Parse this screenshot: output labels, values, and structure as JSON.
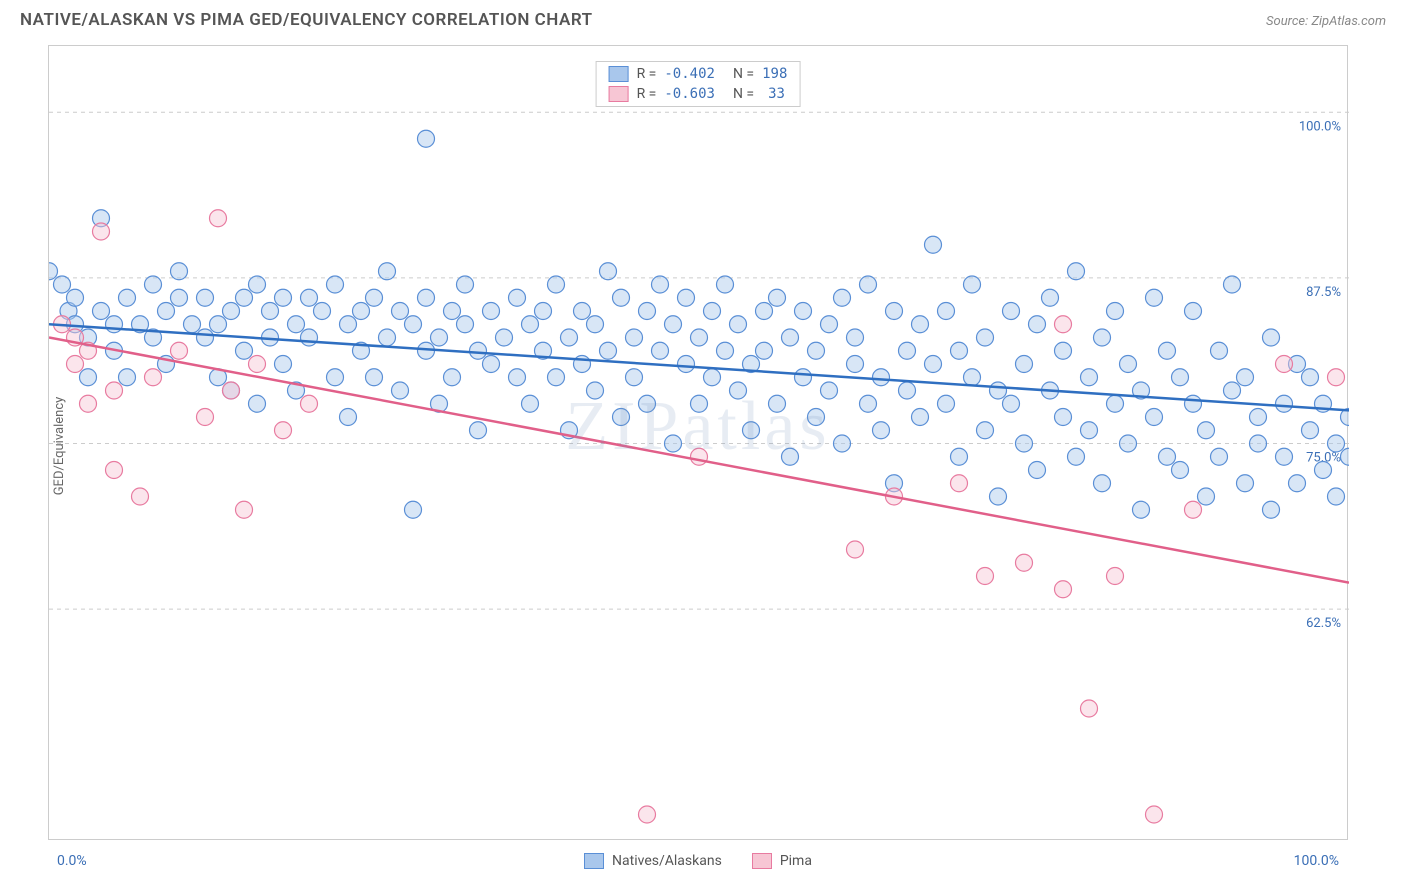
{
  "header": {
    "title": "NATIVE/ALASKAN VS PIMA GED/EQUIVALENCY CORRELATION CHART",
    "source_prefix": "Source: ",
    "source_name": "ZipAtlas.com"
  },
  "ylabel": "GED/Equivalency",
  "watermark": "ZIPatlas",
  "axes": {
    "xlim": [
      0,
      100
    ],
    "ylim": [
      45,
      105
    ],
    "x_tick_left": "0.0%",
    "x_tick_right": "100.0%",
    "y_ticks": [
      {
        "v": 62.5,
        "label": "62.5%"
      },
      {
        "v": 75.0,
        "label": "75.0%"
      },
      {
        "v": 87.5,
        "label": "87.5%"
      },
      {
        "v": 100.0,
        "label": "100.0%"
      }
    ],
    "grid_color": "#cccccc"
  },
  "legend": {
    "series_a": {
      "name": "Natives/Alaskans",
      "R": "-0.402",
      "N": "198"
    },
    "series_b": {
      "name": "Pima",
      "R": "-0.603",
      "N": "33"
    },
    "R_label": "R = ",
    "N_label": "N = "
  },
  "colors": {
    "series_a_fill": "#a9c7ec",
    "series_a_stroke": "#5a8fd6",
    "series_a_line": "#2f6fc1",
    "series_b_fill": "#f7c6d4",
    "series_b_stroke": "#e87ba0",
    "series_b_line": "#e15f89",
    "axis_text": "#3b6fb6",
    "background": "#ffffff"
  },
  "trend_lines": {
    "a": {
      "x1": 0,
      "y1": 84.0,
      "x2": 100,
      "y2": 77.5
    },
    "b": {
      "x1": 0,
      "y1": 83.0,
      "x2": 100,
      "y2": 64.5
    }
  },
  "marker_radius": 8.5,
  "series_a_points": [
    [
      0,
      88
    ],
    [
      1,
      87
    ],
    [
      1.5,
      85
    ],
    [
      2,
      84
    ],
    [
      2,
      86
    ],
    [
      3,
      83
    ],
    [
      3,
      80
    ],
    [
      4,
      85
    ],
    [
      4,
      92
    ],
    [
      5,
      84
    ],
    [
      5,
      82
    ],
    [
      6,
      86
    ],
    [
      6,
      80
    ],
    [
      7,
      84
    ],
    [
      8,
      87
    ],
    [
      8,
      83
    ],
    [
      9,
      85
    ],
    [
      9,
      81
    ],
    [
      10,
      86
    ],
    [
      10,
      88
    ],
    [
      11,
      84
    ],
    [
      12,
      83
    ],
    [
      12,
      86
    ],
    [
      13,
      80
    ],
    [
      13,
      84
    ],
    [
      14,
      85
    ],
    [
      14,
      79
    ],
    [
      15,
      86
    ],
    [
      15,
      82
    ],
    [
      16,
      87
    ],
    [
      16,
      78
    ],
    [
      17,
      85
    ],
    [
      17,
      83
    ],
    [
      18,
      86
    ],
    [
      18,
      81
    ],
    [
      19,
      84
    ],
    [
      19,
      79
    ],
    [
      20,
      86
    ],
    [
      20,
      83
    ],
    [
      21,
      85
    ],
    [
      22,
      80
    ],
    [
      22,
      87
    ],
    [
      23,
      84
    ],
    [
      23,
      77
    ],
    [
      24,
      82
    ],
    [
      24,
      85
    ],
    [
      25,
      86
    ],
    [
      25,
      80
    ],
    [
      26,
      83
    ],
    [
      26,
      88
    ],
    [
      27,
      85
    ],
    [
      27,
      79
    ],
    [
      28,
      84
    ],
    [
      28,
      70
    ],
    [
      29,
      82
    ],
    [
      29,
      86
    ],
    [
      30,
      83
    ],
    [
      30,
      78
    ],
    [
      31,
      85
    ],
    [
      31,
      80
    ],
    [
      32,
      84
    ],
    [
      32,
      87
    ],
    [
      33,
      82
    ],
    [
      33,
      76
    ],
    [
      34,
      85
    ],
    [
      34,
      81
    ],
    [
      35,
      83
    ],
    [
      36,
      80
    ],
    [
      36,
      86
    ],
    [
      37,
      84
    ],
    [
      37,
      78
    ],
    [
      38,
      82
    ],
    [
      38,
      85
    ],
    [
      39,
      80
    ],
    [
      39,
      87
    ],
    [
      40,
      83
    ],
    [
      40,
      76
    ],
    [
      41,
      85
    ],
    [
      41,
      81
    ],
    [
      42,
      84
    ],
    [
      42,
      79
    ],
    [
      43,
      82
    ],
    [
      43,
      88
    ],
    [
      44,
      86
    ],
    [
      44,
      77
    ],
    [
      45,
      83
    ],
    [
      45,
      80
    ],
    [
      46,
      85
    ],
    [
      46,
      78
    ],
    [
      47,
      82
    ],
    [
      47,
      87
    ],
    [
      48,
      84
    ],
    [
      48,
      75
    ],
    [
      49,
      81
    ],
    [
      49,
      86
    ],
    [
      50,
      83
    ],
    [
      50,
      78
    ],
    [
      51,
      85
    ],
    [
      51,
      80
    ],
    [
      52,
      82
    ],
    [
      52,
      87
    ],
    [
      53,
      79
    ],
    [
      53,
      84
    ],
    [
      54,
      81
    ],
    [
      54,
      76
    ],
    [
      55,
      85
    ],
    [
      55,
      82
    ],
    [
      56,
      78
    ],
    [
      56,
      86
    ],
    [
      57,
      83
    ],
    [
      57,
      74
    ],
    [
      58,
      80
    ],
    [
      58,
      85
    ],
    [
      59,
      82
    ],
    [
      59,
      77
    ],
    [
      60,
      84
    ],
    [
      60,
      79
    ],
    [
      61,
      86
    ],
    [
      61,
      75
    ],
    [
      62,
      81
    ],
    [
      62,
      83
    ],
    [
      63,
      78
    ],
    [
      63,
      87
    ],
    [
      64,
      80
    ],
    [
      64,
      76
    ],
    [
      65,
      85
    ],
    [
      65,
      72
    ],
    [
      66,
      82
    ],
    [
      66,
      79
    ],
    [
      67,
      84
    ],
    [
      67,
      77
    ],
    [
      68,
      90
    ],
    [
      68,
      81
    ],
    [
      69,
      78
    ],
    [
      69,
      85
    ],
    [
      70,
      74
    ],
    [
      70,
      82
    ],
    [
      71,
      80
    ],
    [
      71,
      87
    ],
    [
      72,
      76
    ],
    [
      72,
      83
    ],
    [
      73,
      79
    ],
    [
      73,
      71
    ],
    [
      74,
      85
    ],
    [
      74,
      78
    ],
    [
      75,
      81
    ],
    [
      75,
      75
    ],
    [
      76,
      84
    ],
    [
      76,
      73
    ],
    [
      77,
      79
    ],
    [
      77,
      86
    ],
    [
      78,
      77
    ],
    [
      78,
      82
    ],
    [
      79,
      74
    ],
    [
      79,
      88
    ],
    [
      80,
      80
    ],
    [
      80,
      76
    ],
    [
      81,
      83
    ],
    [
      81,
      72
    ],
    [
      82,
      78
    ],
    [
      82,
      85
    ],
    [
      83,
      75
    ],
    [
      83,
      81
    ],
    [
      84,
      79
    ],
    [
      84,
      70
    ],
    [
      85,
      86
    ],
    [
      85,
      77
    ],
    [
      86,
      74
    ],
    [
      86,
      82
    ],
    [
      87,
      80
    ],
    [
      87,
      73
    ],
    [
      88,
      78
    ],
    [
      88,
      85
    ],
    [
      89,
      76
    ],
    [
      89,
      71
    ],
    [
      90,
      82
    ],
    [
      90,
      74
    ],
    [
      91,
      79
    ],
    [
      91,
      87
    ],
    [
      92,
      72
    ],
    [
      92,
      80
    ],
    [
      93,
      77
    ],
    [
      93,
      75
    ],
    [
      94,
      83
    ],
    [
      94,
      70
    ],
    [
      95,
      78
    ],
    [
      95,
      74
    ],
    [
      96,
      81
    ],
    [
      96,
      72
    ],
    [
      97,
      76
    ],
    [
      97,
      80
    ],
    [
      98,
      73
    ],
    [
      98,
      78
    ],
    [
      99,
      75
    ],
    [
      99,
      71
    ],
    [
      100,
      77
    ],
    [
      100,
      74
    ],
    [
      29,
      98
    ]
  ],
  "series_b_points": [
    [
      1,
      84
    ],
    [
      2,
      81
    ],
    [
      2,
      83
    ],
    [
      3,
      82
    ],
    [
      3,
      78
    ],
    [
      4,
      91
    ],
    [
      5,
      79
    ],
    [
      5,
      73
    ],
    [
      7,
      71
    ],
    [
      8,
      80
    ],
    [
      10,
      82
    ],
    [
      12,
      77
    ],
    [
      13,
      92
    ],
    [
      14,
      79
    ],
    [
      15,
      70
    ],
    [
      16,
      81
    ],
    [
      18,
      76
    ],
    [
      20,
      78
    ],
    [
      46,
      47
    ],
    [
      50,
      74
    ],
    [
      62,
      67
    ],
    [
      65,
      71
    ],
    [
      70,
      72
    ],
    [
      72,
      65
    ],
    [
      75,
      66
    ],
    [
      78,
      64
    ],
    [
      78,
      84
    ],
    [
      80,
      55
    ],
    [
      82,
      65
    ],
    [
      85,
      47
    ],
    [
      88,
      70
    ],
    [
      95,
      81
    ],
    [
      99,
      80
    ]
  ]
}
